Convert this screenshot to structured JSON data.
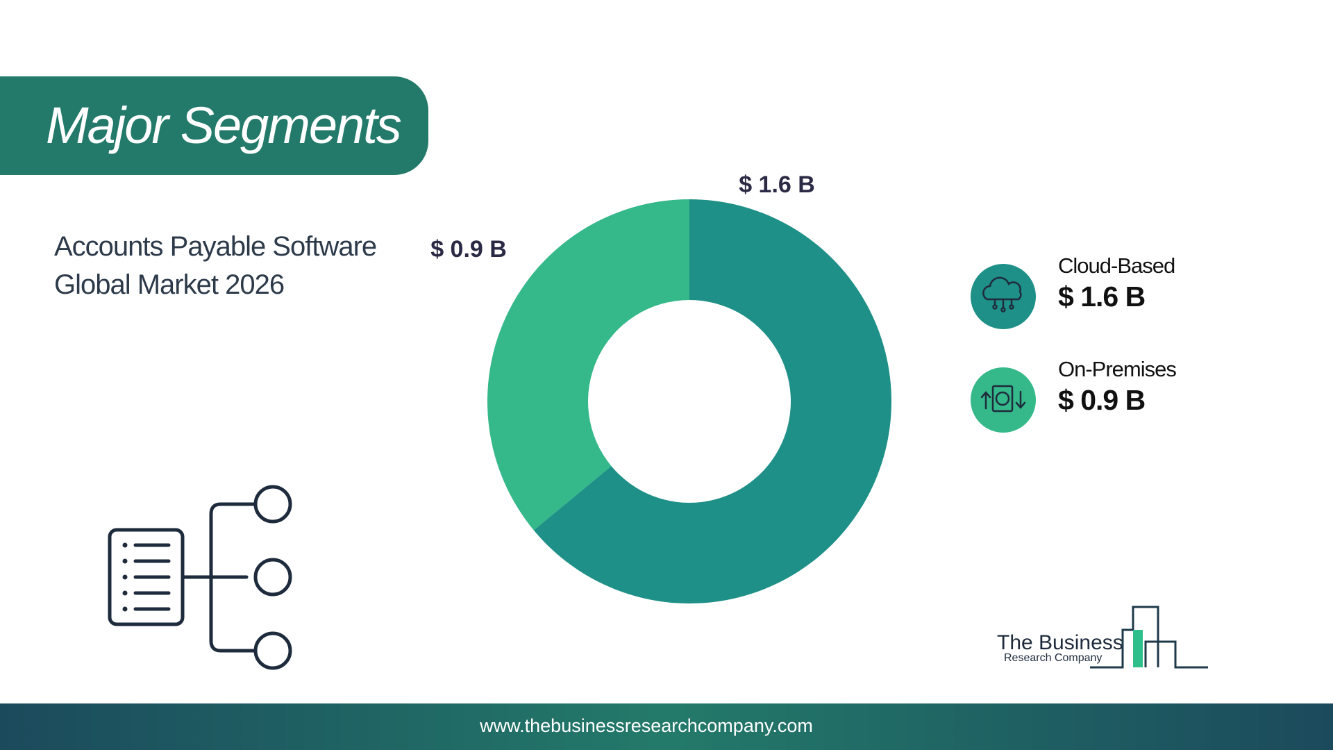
{
  "header": {
    "title": "Major Segments",
    "subtitle": "Accounts Payable Software Global Market 2026"
  },
  "chart_data": {
    "type": "donut",
    "categories": [
      "Cloud-Based",
      "On-Premises"
    ],
    "values": [
      1.6,
      0.9
    ],
    "value_labels": [
      "$ 1.6 B",
      "$ 0.9 B"
    ],
    "colors": [
      "#1e9087",
      "#35b88a"
    ]
  },
  "logo": {
    "line1": "The Business",
    "line2": "Research Company"
  },
  "footer": {
    "url": "www.thebusinessresearchcompany.com"
  }
}
